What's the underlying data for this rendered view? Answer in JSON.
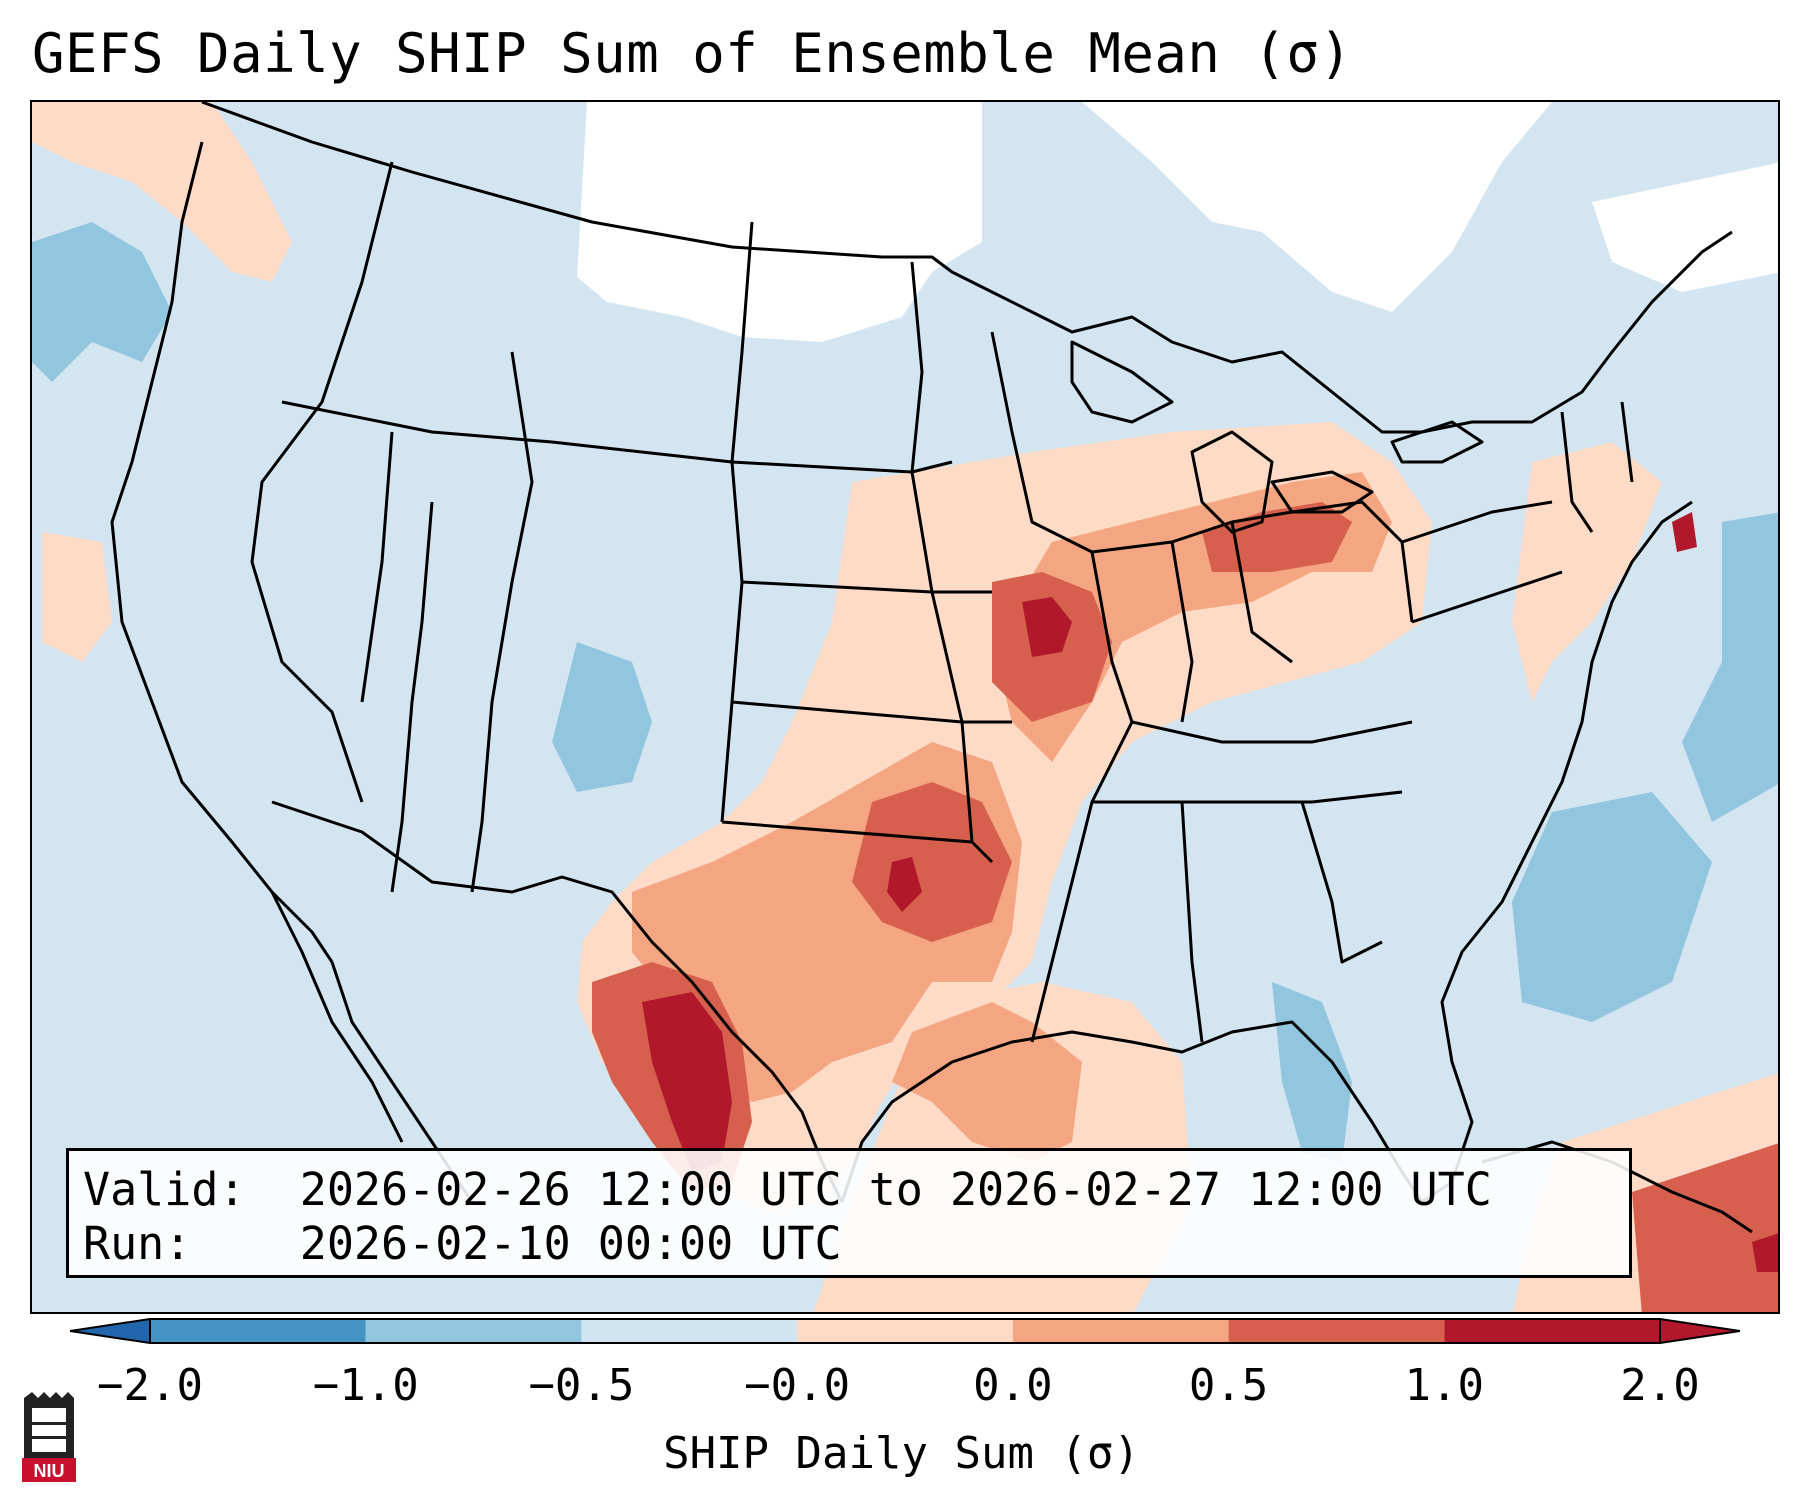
{
  "title": "GEFS Daily SHIP Sum of Ensemble Mean (σ)",
  "info": {
    "valid_label": "Valid:",
    "valid_value": "2026-02-26 12:00 UTC to 2026-02-27 12:00 UTC",
    "run_label": "Run:",
    "run_value": "2026-02-10 00:00 UTC"
  },
  "colorbar": {
    "label": "SHIP Daily Sum (σ)",
    "ticks": [
      "−2.0",
      "−1.0",
      "−0.5",
      "−0.0",
      "0.0",
      "0.5",
      "1.0",
      "2.0"
    ],
    "colors": [
      "#4393c3",
      "#92c5de",
      "#d1e5f0",
      "#ffffff",
      "#fddbc7",
      "#f4a582",
      "#d6604d",
      "#b2182b"
    ],
    "extend_min_color": "#2166ac",
    "extend_max_color": "#b2182b"
  },
  "logo": {
    "text": "NIU",
    "icon": "niu-tower-logo"
  },
  "map_colors": {
    "neutral": "#ffffff",
    "below_0_5": "#d1e5f0",
    "below_1": "#92c5de",
    "above_0": "#fddbc7",
    "above_0_5": "#f4a582",
    "above_1": "#d6604d",
    "above_2": "#b2182b"
  }
}
